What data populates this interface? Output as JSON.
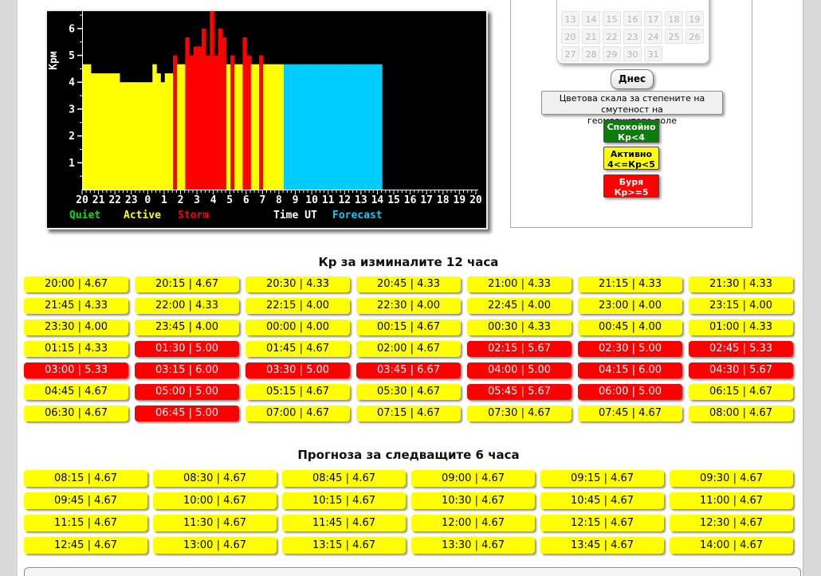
{
  "page": {
    "past_title": "Кр за изминалите 12 часа",
    "forecast_title": "Прогноза за следващите 6 часа"
  },
  "calendar": {
    "weeks": [
      [
        "13",
        "14",
        "15",
        "16",
        "17",
        "18",
        "19"
      ],
      [
        "20",
        "21",
        "22",
        "23",
        "24",
        "25",
        "26"
      ],
      [
        "27",
        "28",
        "29",
        "30",
        "31"
      ]
    ],
    "today_label": "Днес"
  },
  "scale": {
    "label_line1": "Цветова скала за степените на смутеност на",
    "label_line2": "геомагнитото поле",
    "buttons": [
      {
        "name": "quiet",
        "line1": "Спокойно",
        "line2": "Кр<4",
        "bg": "#0b7d0b",
        "fg": "#ffffff"
      },
      {
        "name": "active",
        "line1": "Активно",
        "line2": "4<=Кр<5",
        "bg": "#ffff00",
        "fg": "#000000"
      },
      {
        "name": "storm",
        "line1": "Буря",
        "line2": "Кр>=5",
        "bg": "#ff0000",
        "fg": "#ffffff"
      }
    ]
  },
  "chart_data": {
    "type": "bar",
    "title": "",
    "ylabel": "Kpм",
    "xlabel": "Time UT",
    "ylim": [
      0,
      6.8
    ],
    "y_ticks": [
      1,
      2,
      3,
      4,
      5,
      6
    ],
    "x_hour_labels": [
      "20",
      "21",
      "22",
      "23",
      "0",
      "1",
      "2",
      "3",
      "4",
      "5",
      "6",
      "7",
      "8",
      "9",
      "10",
      "11",
      "12",
      "13",
      "14",
      "15",
      "16",
      "17",
      "18",
      "19",
      "20"
    ],
    "storm_threshold": 5,
    "colors": {
      "quiet": "#00e400",
      "active": "#ffff00",
      "storm": "#ff0000",
      "forecast": "#00ccff",
      "axis": "#ffffff",
      "background": "#000000"
    },
    "legend": [
      {
        "label": "Quiet",
        "color": "#00e400"
      },
      {
        "label": "Active",
        "color": "#ffff00"
      },
      {
        "label": "Storm",
        "color": "#ff0000"
      },
      {
        "label": "Time UT",
        "color": "#ffffff"
      },
      {
        "label": "Forecast",
        "color": "#00ccff"
      }
    ],
    "series": [
      {
        "name": "past",
        "points": [
          [
            "20:00",
            4.67
          ],
          [
            "20:15",
            4.67
          ],
          [
            "20:30",
            4.33
          ],
          [
            "20:45",
            4.33
          ],
          [
            "21:00",
            4.33
          ],
          [
            "21:15",
            4.33
          ],
          [
            "21:30",
            4.33
          ],
          [
            "21:45",
            4.33
          ],
          [
            "22:00",
            4.33
          ],
          [
            "22:15",
            4.0
          ],
          [
            "22:30",
            4.0
          ],
          [
            "22:45",
            4.0
          ],
          [
            "23:00",
            4.0
          ],
          [
            "23:15",
            4.0
          ],
          [
            "23:30",
            4.0
          ],
          [
            "23:45",
            4.0
          ],
          [
            "00:00",
            4.0
          ],
          [
            "00:15",
            4.67
          ],
          [
            "00:30",
            4.33
          ],
          [
            "00:45",
            4.0
          ],
          [
            "01:00",
            4.33
          ],
          [
            "01:15",
            4.33
          ],
          [
            "01:30",
            5.0
          ],
          [
            "01:45",
            4.67
          ],
          [
            "02:00",
            4.67
          ],
          [
            "02:15",
            5.67
          ],
          [
            "02:30",
            5.0
          ],
          [
            "02:45",
            5.33
          ],
          [
            "03:00",
            5.33
          ],
          [
            "03:15",
            6.0
          ],
          [
            "03:30",
            5.0
          ],
          [
            "03:45",
            6.67
          ],
          [
            "04:00",
            5.0
          ],
          [
            "04:15",
            6.0
          ],
          [
            "04:30",
            5.67
          ],
          [
            "04:45",
            4.67
          ],
          [
            "05:00",
            5.0
          ],
          [
            "05:15",
            4.67
          ],
          [
            "05:30",
            4.67
          ],
          [
            "05:45",
            5.67
          ],
          [
            "06:00",
            5.0
          ],
          [
            "06:15",
            4.67
          ],
          [
            "06:30",
            4.67
          ],
          [
            "06:45",
            5.0
          ],
          [
            "07:00",
            4.67
          ],
          [
            "07:15",
            4.67
          ],
          [
            "07:30",
            4.67
          ],
          [
            "07:45",
            4.67
          ],
          [
            "08:00",
            4.67
          ]
        ]
      },
      {
        "name": "forecast",
        "points": [
          [
            "08:15",
            4.67
          ],
          [
            "08:30",
            4.67
          ],
          [
            "08:45",
            4.67
          ],
          [
            "09:00",
            4.67
          ],
          [
            "09:15",
            4.67
          ],
          [
            "09:30",
            4.67
          ],
          [
            "09:45",
            4.67
          ],
          [
            "10:00",
            4.67
          ],
          [
            "10:15",
            4.67
          ],
          [
            "10:30",
            4.67
          ],
          [
            "10:45",
            4.67
          ],
          [
            "11:00",
            4.67
          ],
          [
            "11:15",
            4.67
          ],
          [
            "11:30",
            4.67
          ],
          [
            "11:45",
            4.67
          ],
          [
            "12:00",
            4.67
          ],
          [
            "12:15",
            4.67
          ],
          [
            "12:30",
            4.67
          ],
          [
            "12:45",
            4.67
          ],
          [
            "13:00",
            4.67
          ],
          [
            "13:15",
            4.67
          ],
          [
            "13:30",
            4.67
          ],
          [
            "13:45",
            4.67
          ],
          [
            "14:00",
            4.67
          ]
        ]
      }
    ]
  },
  "tables": {
    "separator": " | ",
    "past": {
      "columns": 7
    },
    "forecast": {
      "columns": 6
    }
  }
}
